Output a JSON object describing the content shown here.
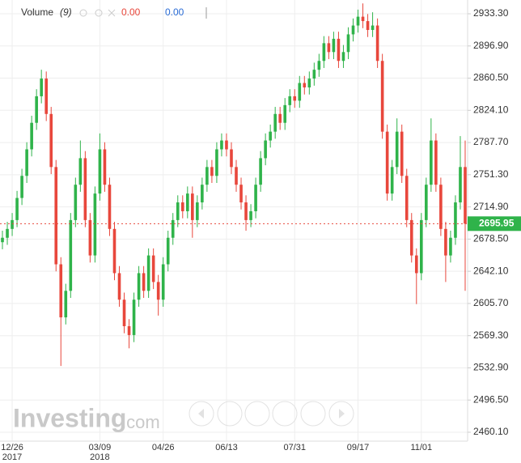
{
  "chart_data": {
    "type": "candlestick",
    "indicator": {
      "name": "Volume",
      "param": "(9)",
      "values": [
        "0.00",
        "0.00"
      ]
    },
    "logo": {
      "brand": "Investing",
      "suffix": ".com"
    },
    "up_color": "#2fb34a",
    "down_color": "#e8473c",
    "grid": true,
    "ylim": [
      2450.03,
      2948.86
    ],
    "yticks": [
      {
        "value": 2460.1,
        "label": "2460.10"
      },
      {
        "value": 2496.5,
        "label": "2496.50"
      },
      {
        "value": 2532.9,
        "label": "2532.90"
      },
      {
        "value": 2569.3,
        "label": "2569.30"
      },
      {
        "value": 2605.7,
        "label": "2605.70"
      },
      {
        "value": 2642.1,
        "label": "2642.10"
      },
      {
        "value": 2678.5,
        "label": "2678.50"
      },
      {
        "value": 2714.9,
        "label": "2714.90"
      },
      {
        "value": 2751.3,
        "label": "2751.30"
      },
      {
        "value": 2787.7,
        "label": "2787.70"
      },
      {
        "value": 2824.1,
        "label": "2824.10"
      },
      {
        "value": 2860.5,
        "label": "2860.50"
      },
      {
        "value": 2896.9,
        "label": "2896.90"
      },
      {
        "value": 2933.3,
        "label": "2933.30"
      }
    ],
    "categories": [
      null,
      null,
      "12/26",
      null,
      null,
      null,
      null,
      null,
      null,
      null,
      null,
      null,
      null,
      null,
      null,
      null,
      null,
      null,
      null,
      null,
      "03/09",
      null,
      null,
      null,
      null,
      null,
      null,
      null,
      null,
      null,
      null,
      null,
      null,
      "04/26",
      null,
      null,
      null,
      null,
      null,
      null,
      null,
      null,
      null,
      null,
      null,
      null,
      "06/13",
      null,
      null,
      null,
      null,
      null,
      null,
      null,
      null,
      null,
      null,
      null,
      null,
      null,
      "07/31",
      null,
      null,
      null,
      null,
      null,
      null,
      null,
      null,
      null,
      null,
      null,
      null,
      "09/17",
      null,
      null,
      null,
      null,
      null,
      null,
      null,
      null,
      null,
      null,
      null,
      null,
      "11/01",
      null,
      null,
      null,
      null,
      null,
      null,
      null,
      null,
      null
    ],
    "year_labels": {
      "2": "2017",
      "20": "2018"
    },
    "ohlc": [
      [
        2675,
        2688,
        2667,
        2680
      ],
      [
        2680,
        2698,
        2672,
        2690
      ],
      [
        2690,
        2708,
        2682,
        2700
      ],
      [
        2700,
        2733,
        2692,
        2725
      ],
      [
        2725,
        2758,
        2717,
        2750
      ],
      [
        2750,
        2788,
        2742,
        2780
      ],
      [
        2780,
        2818,
        2772,
        2810
      ],
      [
        2810,
        2848,
        2802,
        2840
      ],
      [
        2840,
        2870,
        2832,
        2860
      ],
      [
        2860,
        2868,
        2812,
        2820
      ],
      [
        2820,
        2828,
        2752,
        2760
      ],
      [
        2760,
        2768,
        2642,
        2650
      ],
      [
        2650,
        2658,
        2535,
        2590
      ],
      [
        2590,
        2628,
        2582,
        2620
      ],
      [
        2620,
        2708,
        2612,
        2700
      ],
      [
        2700,
        2748,
        2692,
        2740
      ],
      [
        2740,
        2790,
        2732,
        2770
      ],
      [
        2770,
        2778,
        2692,
        2700
      ],
      [
        2700,
        2708,
        2652,
        2660
      ],
      [
        2660,
        2738,
        2652,
        2730
      ],
      [
        2730,
        2798,
        2722,
        2780
      ],
      [
        2780,
        2788,
        2732,
        2740
      ],
      [
        2740,
        2748,
        2682,
        2690
      ],
      [
        2690,
        2698,
        2632,
        2640
      ],
      [
        2640,
        2648,
        2602,
        2610
      ],
      [
        2610,
        2618,
        2572,
        2580
      ],
      [
        2580,
        2588,
        2555,
        2570
      ],
      [
        2570,
        2618,
        2562,
        2610
      ],
      [
        2610,
        2648,
        2602,
        2640
      ],
      [
        2640,
        2648,
        2612,
        2620
      ],
      [
        2620,
        2668,
        2612,
        2660
      ],
      [
        2660,
        2668,
        2622,
        2630
      ],
      [
        2630,
        2638,
        2592,
        2610
      ],
      [
        2610,
        2658,
        2602,
        2650
      ],
      [
        2650,
        2688,
        2642,
        2680
      ],
      [
        2680,
        2708,
        2672,
        2700
      ],
      [
        2700,
        2728,
        2692,
        2720
      ],
      [
        2720,
        2728,
        2702,
        2710
      ],
      [
        2710,
        2738,
        2702,
        2730
      ],
      [
        2730,
        2738,
        2680,
        2700
      ],
      [
        2700,
        2728,
        2692,
        2720
      ],
      [
        2720,
        2748,
        2712,
        2740
      ],
      [
        2740,
        2768,
        2732,
        2760
      ],
      [
        2760,
        2768,
        2742,
        2750
      ],
      [
        2750,
        2788,
        2742,
        2780
      ],
      [
        2780,
        2798,
        2772,
        2790
      ],
      [
        2790,
        2798,
        2772,
        2780
      ],
      [
        2780,
        2788,
        2752,
        2760
      ],
      [
        2760,
        2768,
        2732,
        2740
      ],
      [
        2740,
        2748,
        2712,
        2720
      ],
      [
        2720,
        2728,
        2688,
        2700
      ],
      [
        2700,
        2718,
        2692,
        2710
      ],
      [
        2710,
        2748,
        2702,
        2740
      ],
      [
        2740,
        2778,
        2732,
        2770
      ],
      [
        2770,
        2798,
        2762,
        2790
      ],
      [
        2790,
        2808,
        2782,
        2800
      ],
      [
        2800,
        2828,
        2792,
        2820
      ],
      [
        2820,
        2828,
        2802,
        2810
      ],
      [
        2810,
        2838,
        2802,
        2830
      ],
      [
        2830,
        2848,
        2822,
        2840
      ],
      [
        2840,
        2848,
        2827,
        2835
      ],
      [
        2835,
        2863,
        2827,
        2855
      ],
      [
        2855,
        2863,
        2842,
        2850
      ],
      [
        2850,
        2868,
        2842,
        2860
      ],
      [
        2860,
        2878,
        2852,
        2870
      ],
      [
        2870,
        2888,
        2862,
        2880
      ],
      [
        2880,
        2908,
        2872,
        2900
      ],
      [
        2900,
        2908,
        2882,
        2890
      ],
      [
        2890,
        2913,
        2882,
        2905
      ],
      [
        2905,
        2913,
        2872,
        2880
      ],
      [
        2880,
        2898,
        2872,
        2890
      ],
      [
        2890,
        2918,
        2882,
        2910
      ],
      [
        2910,
        2928,
        2902,
        2920
      ],
      [
        2920,
        2938,
        2912,
        2930
      ],
      [
        2930,
        2945,
        2917,
        2925
      ],
      [
        2925,
        2933,
        2907,
        2915
      ],
      [
        2915,
        2935,
        2907,
        2920
      ],
      [
        2920,
        2928,
        2872,
        2880
      ],
      [
        2880,
        2888,
        2792,
        2800
      ],
      [
        2800,
        2808,
        2722,
        2730
      ],
      [
        2730,
        2768,
        2722,
        2760
      ],
      [
        2760,
        2815,
        2752,
        2800
      ],
      [
        2800,
        2808,
        2742,
        2750
      ],
      [
        2750,
        2758,
        2692,
        2700
      ],
      [
        2700,
        2708,
        2652,
        2660
      ],
      [
        2660,
        2668,
        2605,
        2640
      ],
      [
        2640,
        2708,
        2632,
        2700
      ],
      [
        2700,
        2748,
        2692,
        2740
      ],
      [
        2740,
        2815,
        2732,
        2790
      ],
      [
        2790,
        2798,
        2732,
        2740
      ],
      [
        2740,
        2748,
        2682,
        2690
      ],
      [
        2690,
        2698,
        2630,
        2660
      ],
      [
        2660,
        2688,
        2652,
        2680
      ],
      [
        2680,
        2728,
        2672,
        2720
      ],
      [
        2720,
        2795,
        2712,
        2760
      ],
      [
        2760,
        2790,
        2620,
        2695.95
      ]
    ]
  }
}
